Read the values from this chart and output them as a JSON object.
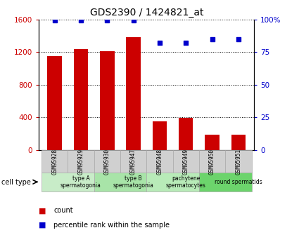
{
  "title": "GDS2390 / 1424821_at",
  "samples": [
    "GSM95928",
    "GSM95929",
    "GSM95930",
    "GSM95947",
    "GSM95948",
    "GSM95949",
    "GSM95950",
    "GSM95951"
  ],
  "counts": [
    1150,
    1235,
    1210,
    1380,
    350,
    390,
    190,
    190
  ],
  "percentiles": [
    99.5,
    99.5,
    99.5,
    99.5,
    82,
    82,
    85,
    85
  ],
  "ylim_left": [
    0,
    1600
  ],
  "ylim_right": [
    0,
    100
  ],
  "yticks_left": [
    0,
    400,
    800,
    1200,
    1600
  ],
  "yticks_right": [
    0,
    25,
    50,
    75,
    100
  ],
  "ytick_labels_right": [
    "0",
    "25",
    "50",
    "75",
    "100%"
  ],
  "bar_color": "#cc0000",
  "scatter_color": "#0000cc",
  "cell_groups": [
    {
      "label": "type A\nspermatogonia",
      "start": 0,
      "end": 2,
      "color": "#c8ecc8"
    },
    {
      "label": "type B\nspermatogonia",
      "start": 2,
      "end": 4,
      "color": "#a8e4a8"
    },
    {
      "label": "pachytene\nspermatocytes",
      "start": 4,
      "end": 6,
      "color": "#b8ebb8"
    },
    {
      "label": "round spermatids",
      "start": 6,
      "end": 8,
      "color": "#6cd46c"
    }
  ],
  "xlabel_box_color": "#d0d0d0",
  "cell_type_label": "cell type",
  "legend_count_label": "count",
  "legend_percentile_label": "percentile rank within the sample",
  "bar_width": 0.55
}
